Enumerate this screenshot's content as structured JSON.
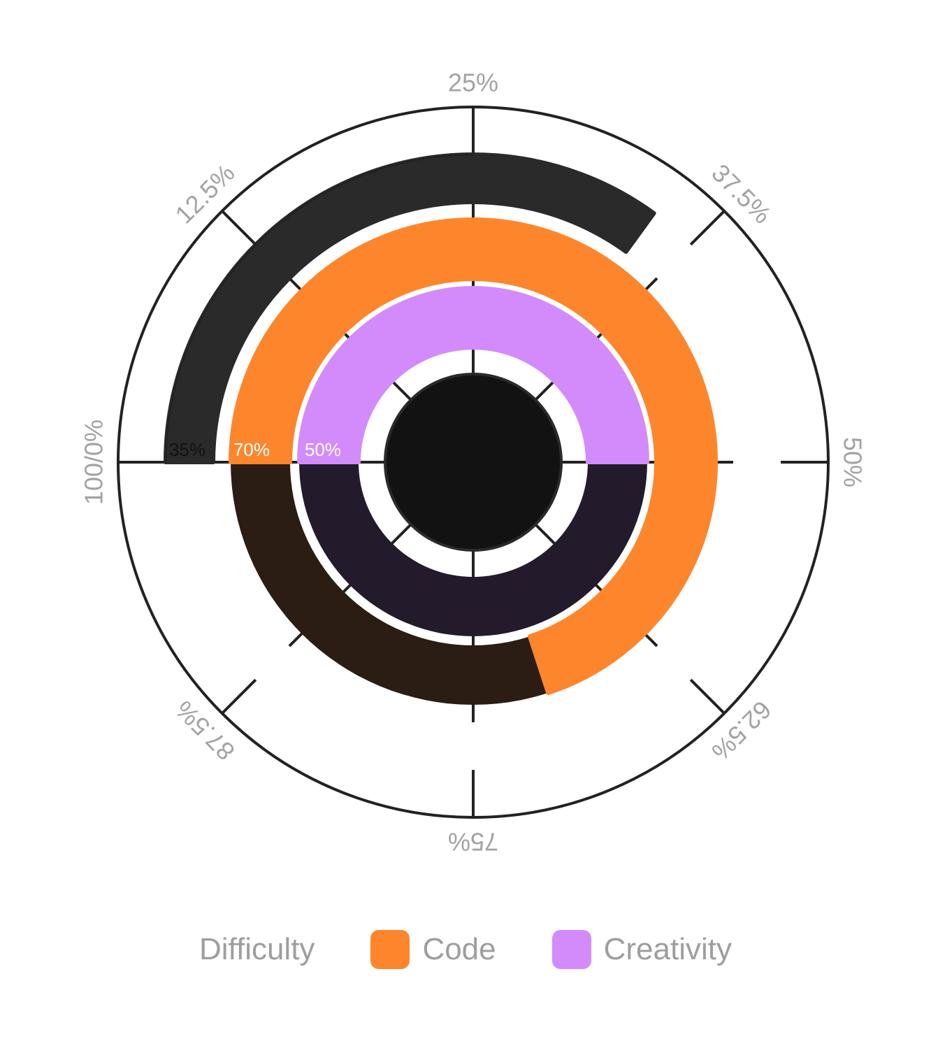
{
  "chart_data": {
    "type": "radial-bar",
    "categories": [],
    "series": [
      {
        "name": "Difficulty",
        "value": 35,
        "label": "35%",
        "color": "#2a2a2a",
        "track": "#ffffff",
        "label_color": "#111111"
      },
      {
        "name": "Code",
        "value": 70,
        "label": "70%",
        "color": "#fd862d",
        "track": "#2b1d14",
        "label_color": "#ffffff"
      },
      {
        "name": "Creativity",
        "value": 50,
        "label": "50%",
        "color": "#d38bfc",
        "track": "#231b2b",
        "label_color": "#ffffff"
      }
    ],
    "axis_labels": [
      "100/0%",
      "12.5%",
      "25%",
      "37.5%",
      "50%",
      "62.5%",
      "75%",
      "87.5%"
    ],
    "legend": {
      "placement": "bottom",
      "show_swatch": [
        false,
        true,
        true
      ]
    },
    "center_color": "#121212",
    "line_color": "#222222",
    "tick_label_color": "#a3a3a3"
  }
}
